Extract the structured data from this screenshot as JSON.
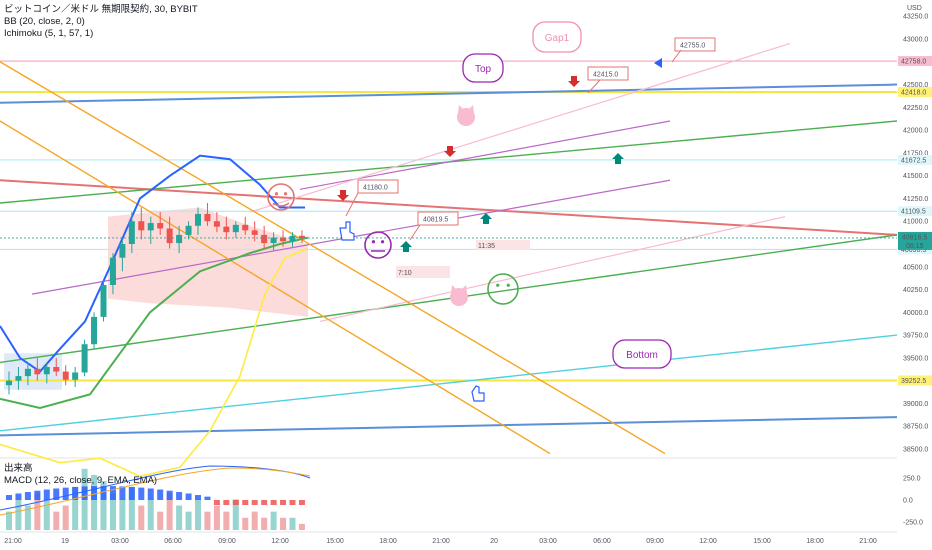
{
  "header": {
    "line1": "ビットコイン／米ドル 無期限契約, 30, BYBIT",
    "line2": "BB (20, close, 2, 0)",
    "line3": "Ichimoku (5, 1, 57, 1)",
    "sub1": "出来高",
    "sub2": "MACD (12, 26, close, 9, EMA, EMA)"
  },
  "colors": {
    "up": "#26a69a",
    "down": "#ef5350",
    "bb": "#2962ff",
    "ichi_green": "#4caf50",
    "ichi_yellow": "#ffeb3b",
    "orange": "#f5a623",
    "red_line": "#e57373",
    "blue_line": "#5b8fd8",
    "cyan_line": "#4dd0e1",
    "violet_line": "#ba68c8",
    "pink_line": "#f8bbd0"
  },
  "chart_data": {
    "type": "candlestick",
    "title": "ビットコイン／米ドル 無期限契約, 30, BYBIT",
    "currency_label": "USD",
    "y_ticks": [
      38500,
      38750,
      39000,
      39250,
      39500,
      39750,
      40000,
      40250,
      40500,
      40750,
      41000,
      41250,
      41500,
      41750,
      42000,
      42250,
      42500,
      42750,
      43000,
      43250
    ],
    "x_ticks": [
      "21:00",
      "19",
      "03:00",
      "06:00",
      "09:00",
      "12:00",
      "15:00",
      "18:00",
      "21:00",
      "20",
      "03:00",
      "06:00",
      "09:00",
      "12:00",
      "15:00",
      "18:00",
      "21:00"
    ],
    "candles_ohlc": [
      [
        39200,
        39350,
        39100,
        39250
      ],
      [
        39250,
        39400,
        39150,
        39300
      ],
      [
        39300,
        39450,
        39200,
        39380
      ],
      [
        39380,
        39500,
        39250,
        39320
      ],
      [
        39320,
        39450,
        39220,
        39400
      ],
      [
        39400,
        39500,
        39300,
        39350
      ],
      [
        39350,
        39420,
        39200,
        39260
      ],
      [
        39260,
        39400,
        39180,
        39340
      ],
      [
        39340,
        39700,
        39300,
        39650
      ],
      [
        39650,
        40000,
        39600,
        39950
      ],
      [
        39950,
        40350,
        39900,
        40300
      ],
      [
        40300,
        40650,
        40200,
        40600
      ],
      [
        40600,
        40800,
        40450,
        40750
      ],
      [
        40750,
        41100,
        40650,
        41000
      ],
      [
        41000,
        41150,
        40800,
        40900
      ],
      [
        40900,
        41050,
        40750,
        40980
      ],
      [
        40980,
        41100,
        40850,
        40920
      ],
      [
        40920,
        41050,
        40700,
        40760
      ],
      [
        40760,
        40950,
        40650,
        40850
      ],
      [
        40850,
        41000,
        40800,
        40950
      ],
      [
        40950,
        41150,
        40850,
        41080
      ],
      [
        41080,
        41200,
        40950,
        41000
      ],
      [
        41000,
        41100,
        40880,
        40940
      ],
      [
        40940,
        41050,
        40800,
        40880
      ],
      [
        40880,
        41000,
        40820,
        40960
      ],
      [
        40960,
        41050,
        40850,
        40900
      ],
      [
        40900,
        41000,
        40780,
        40850
      ],
      [
        40850,
        40950,
        40700,
        40760
      ],
      [
        40760,
        40880,
        40680,
        40820
      ],
      [
        40820,
        40900,
        40720,
        40780
      ],
      [
        40780,
        40880,
        40720,
        40840
      ],
      [
        40840,
        40900,
        40760,
        40816
      ]
    ],
    "current_price": 40816.5,
    "countdown": "06:15",
    "price_levels": [
      42758.0,
      42418.0,
      41672.5,
      41109.5,
      40690.5,
      39252.5
    ],
    "callouts": [
      "42755.0",
      "42415.0",
      "41180.0",
      "40819.5"
    ],
    "annotations": [
      "Top",
      "Gap1",
      "Bottom",
      "11:35",
      "7:10"
    ],
    "volume_ticks": [
      250.0,
      0.0,
      -250.0
    ],
    "volume_ratio": [
      0.3,
      0.5,
      0.4,
      0.6,
      0.5,
      0.3,
      0.4,
      0.7,
      1.0,
      0.9,
      0.8,
      0.6,
      0.5,
      0.7,
      0.4,
      0.5,
      0.3,
      0.6,
      0.4,
      0.3,
      0.5,
      0.3,
      0.4,
      0.3,
      0.5,
      0.2,
      0.3,
      0.2,
      0.3,
      0.2,
      0.2,
      0.1
    ]
  }
}
